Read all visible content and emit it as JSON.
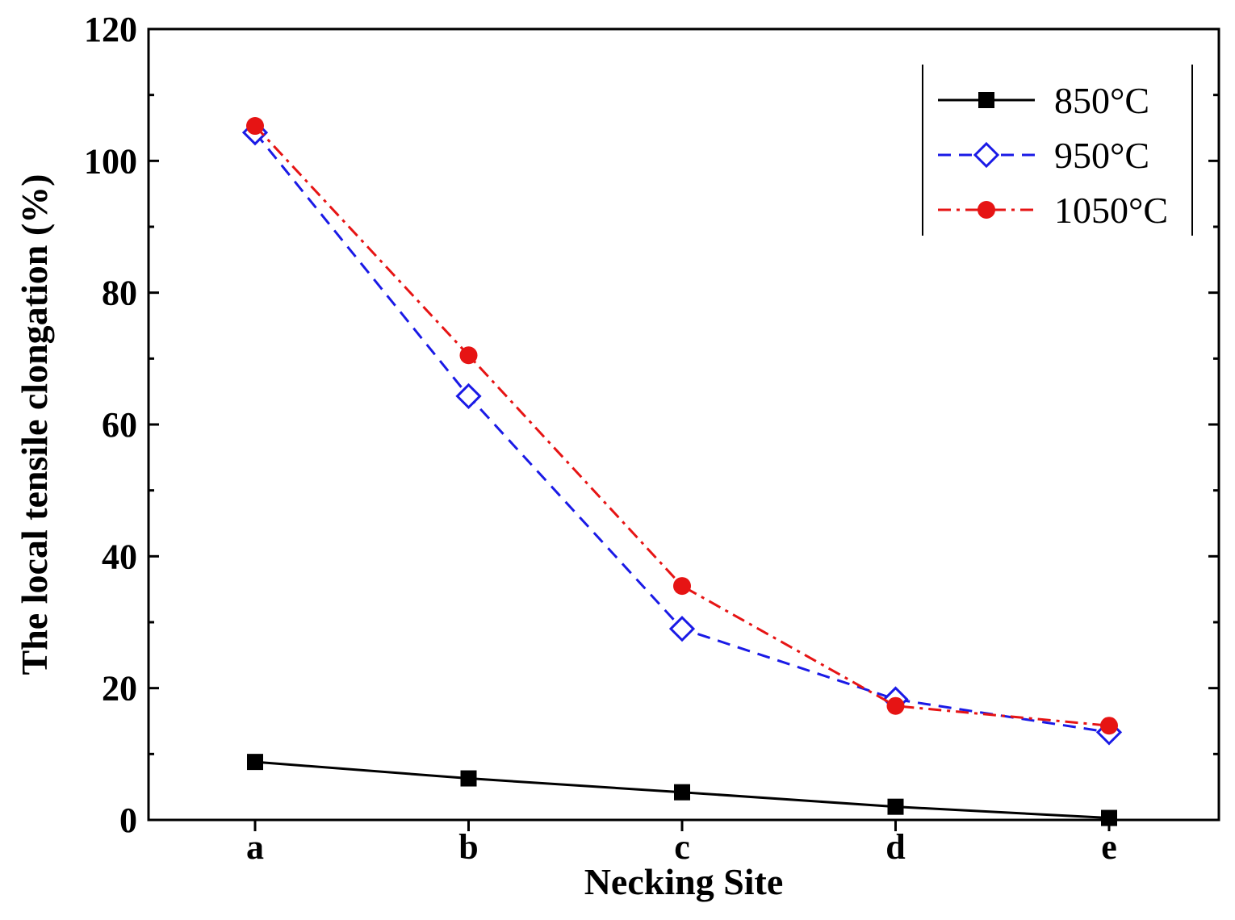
{
  "chart_data": {
    "type": "line",
    "title": "",
    "xlabel": "Necking Site",
    "ylabel": "The local tensile clongation (%)",
    "categories": [
      "a",
      "b",
      "c",
      "d",
      "e"
    ],
    "ylim": [
      0,
      120
    ],
    "yticks": [
      0,
      20,
      40,
      60,
      80,
      100,
      120
    ],
    "grid": false,
    "legend_position": "top-right",
    "series": [
      {
        "name": "850°C",
        "color": "#000000",
        "line_style": "solid",
        "marker": "filled-square",
        "values": [
          8.8,
          6.3,
          4.2,
          2.0,
          0.3
        ]
      },
      {
        "name": "950°C",
        "color": "#1a1ae6",
        "line_style": "dashed",
        "marker": "open-diamond",
        "values": [
          104.3,
          64.3,
          29.0,
          18.3,
          13.3
        ]
      },
      {
        "name": "1050°C",
        "color": "#e61414",
        "line_style": "dash-dot",
        "marker": "filled-circle",
        "values": [
          105.3,
          70.5,
          35.5,
          17.3,
          14.3
        ]
      }
    ]
  }
}
